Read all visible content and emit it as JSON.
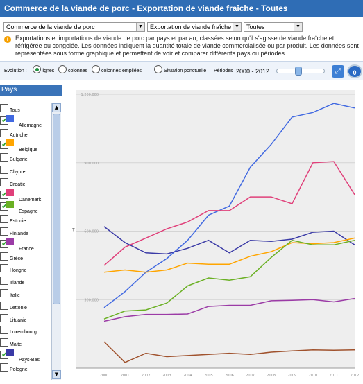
{
  "header": {
    "title": "Commerce de la viande de porc - Exportation de viande fraîche - Toutes"
  },
  "selectors": {
    "theme": "Commerce de la viande de porc",
    "product": "Exportation de viande fraîche",
    "filter": "Toutes"
  },
  "description": "Exportations et importations de viande de porc par pays et par an, classées selon qu'il s'agisse de viande fraîche et réfrigérée ou congelée. Les données indiquent la quantité totale de viande commercialisée ou par produit. Les données sont représentées sous forme graphique et permettent de voir et comparer différents pays ou périodes.",
  "options": {
    "evolution_label": "Evolution :",
    "radio_lignes": "lignes",
    "radio_colonnes": "colonnes",
    "radio_colonnes_empilees": "colonnes empilées",
    "radio_situation": "Situation ponctuelle",
    "periodes_label": "Périodes :",
    "periode_range": "2000 - 2012",
    "play_label": "0"
  },
  "sidebar": {
    "title": "Pays",
    "countries": [
      {
        "name": "Tous",
        "checked": false,
        "color": ""
      },
      {
        "name": "Allemagne",
        "checked": true,
        "color": "#4169e1"
      },
      {
        "name": "Autriche",
        "checked": false,
        "color": ""
      },
      {
        "name": "Belgique",
        "checked": true,
        "color": "#ffa500"
      },
      {
        "name": "Bulgarie",
        "checked": false,
        "color": ""
      },
      {
        "name": "Chypre",
        "checked": false,
        "color": ""
      },
      {
        "name": "Croatie",
        "checked": false,
        "color": ""
      },
      {
        "name": "Danemark",
        "checked": true,
        "color": "#e0407a"
      },
      {
        "name": "Espagne",
        "checked": true,
        "color": "#6ab023"
      },
      {
        "name": "Estonie",
        "checked": false,
        "color": ""
      },
      {
        "name": "Finlande",
        "checked": false,
        "color": ""
      },
      {
        "name": "France",
        "checked": true,
        "color": "#9b3ba6"
      },
      {
        "name": "Grèce",
        "checked": false,
        "color": ""
      },
      {
        "name": "Hongrie",
        "checked": false,
        "color": ""
      },
      {
        "name": "Irlande",
        "checked": false,
        "color": ""
      },
      {
        "name": "Italie",
        "checked": false,
        "color": ""
      },
      {
        "name": "Lettonie",
        "checked": false,
        "color": ""
      },
      {
        "name": "Lituanie",
        "checked": false,
        "color": ""
      },
      {
        "name": "Luxembourg",
        "checked": false,
        "color": ""
      },
      {
        "name": "Malte",
        "checked": false,
        "color": ""
      },
      {
        "name": "Pays-Bas",
        "checked": true,
        "color": "#3a3aa6"
      },
      {
        "name": "Pologne",
        "checked": false,
        "color": ""
      }
    ]
  },
  "chart_data": {
    "type": "line",
    "x": [
      "2000",
      "2001",
      "2002",
      "2003",
      "2004",
      "2005",
      "2006",
      "2007",
      "2008",
      "2009",
      "2010",
      "2011",
      "2012"
    ],
    "ylim": [
      0,
      1200000
    ],
    "yticks": [
      "300.000",
      "600.000",
      "900.000",
      "1.200.000"
    ],
    "ylabel": "T",
    "series": [
      {
        "name": "Allemagne",
        "color": "#4169e1",
        "values": [
          265000,
          335000,
          420000,
          480000,
          560000,
          670000,
          710000,
          880000,
          980000,
          1100000,
          1120000,
          1160000,
          1140000
        ]
      },
      {
        "name": "Danemark",
        "color": "#e0407a",
        "values": [
          450000,
          530000,
          570000,
          610000,
          640000,
          690000,
          690000,
          750000,
          750000,
          720000,
          900000,
          905000,
          760000
        ]
      },
      {
        "name": "Pays-Bas",
        "color": "#3a3aa6",
        "values": [
          620000,
          550000,
          505000,
          500000,
          525000,
          560000,
          505000,
          560000,
          555000,
          565000,
          595000,
          600000,
          540000
        ]
      },
      {
        "name": "Belgique",
        "color": "#ffa500",
        "values": [
          420000,
          430000,
          420000,
          430000,
          460000,
          455000,
          455000,
          490000,
          510000,
          550000,
          545000,
          550000,
          570000
        ]
      },
      {
        "name": "Espagne",
        "color": "#6ab023",
        "values": [
          215000,
          250000,
          255000,
          285000,
          360000,
          395000,
          385000,
          400000,
          485000,
          560000,
          540000,
          540000,
          560000
        ]
      },
      {
        "name": "France",
        "color": "#9b3ba6",
        "values": [
          205000,
          225000,
          235000,
          235000,
          237000,
          270000,
          275000,
          275000,
          295000,
          297000,
          300000,
          290000,
          305000
        ]
      },
      {
        "name": "",
        "color": "#a0522d",
        "values": [
          115000,
          25000,
          65000,
          50000,
          55000,
          60000,
          65000,
          60000,
          70000,
          75000,
          80000,
          78000,
          80000
        ]
      }
    ]
  }
}
